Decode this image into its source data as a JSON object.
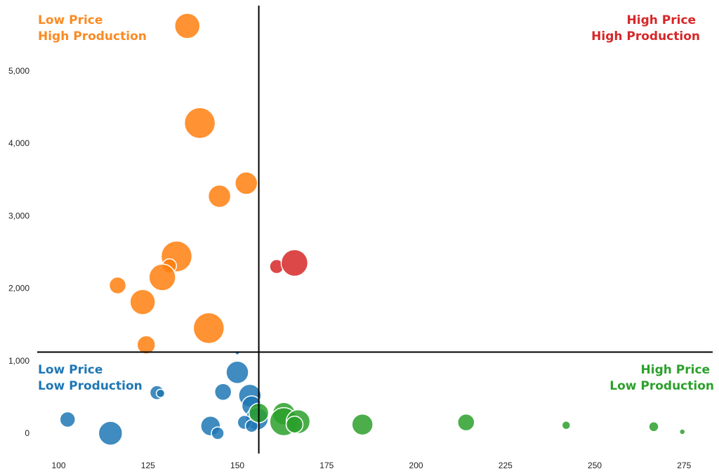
{
  "chart_data": {
    "type": "scatter",
    "subtype": "bubble",
    "title": "",
    "xlabel": "",
    "ylabel": "",
    "xlim": [
      94,
      283
    ],
    "ylim": [
      -280,
      5900
    ],
    "x_ticks": [
      100,
      125,
      150,
      175,
      200,
      225,
      250,
      275
    ],
    "y_ticks": [
      0,
      1000,
      2000,
      3000,
      4000,
      5000
    ],
    "y_tick_labels": [
      "0",
      "1,000",
      "2,000",
      "3,000",
      "4,000",
      "5,000"
    ],
    "x_divider": 156,
    "y_divider": 1120,
    "grid": false,
    "legend": "none",
    "quadrants": [
      {
        "key": "lp_hp",
        "lines": [
          "Low Price",
          "High Production"
        ],
        "color": "#fb8b24",
        "position": "top-left"
      },
      {
        "key": "hp_hp",
        "lines": [
          "High Price",
          "High Production"
        ],
        "color": "#d62728",
        "position": "top-right"
      },
      {
        "key": "lp_lp",
        "lines": [
          "Low Price",
          "Low Production"
        ],
        "color": "#1f77b4",
        "position": "bottom-left"
      },
      {
        "key": "hp_lp",
        "lines": [
          "High Price",
          "Low Production"
        ],
        "color": "#2ca02c",
        "position": "bottom-right"
      }
    ],
    "series": [
      {
        "quadrant": "lp_hp",
        "color": "#ff7f0e",
        "points": [
          {
            "x": 136,
            "y": 5620,
            "size": 18
          },
          {
            "x": 139.5,
            "y": 4280,
            "size": 22
          },
          {
            "x": 145,
            "y": 3270,
            "size": 16
          },
          {
            "x": 152.5,
            "y": 3450,
            "size": 16
          },
          {
            "x": 133,
            "y": 2440,
            "size": 22
          },
          {
            "x": 131,
            "y": 2310,
            "size": 10
          },
          {
            "x": 129,
            "y": 2150,
            "size": 19
          },
          {
            "x": 116.5,
            "y": 2040,
            "size": 12
          },
          {
            "x": 123.5,
            "y": 1810,
            "size": 18
          },
          {
            "x": 142,
            "y": 1450,
            "size": 22
          },
          {
            "x": 124.5,
            "y": 1220,
            "size": 13
          }
        ]
      },
      {
        "quadrant": "hp_hp",
        "color": "#d62728",
        "points": [
          {
            "x": 161,
            "y": 2300,
            "size": 10
          },
          {
            "x": 166,
            "y": 2350,
            "size": 19
          }
        ]
      },
      {
        "quadrant": "lp_lp",
        "color": "#1f77b4",
        "points": [
          {
            "x": 150,
            "y": 1110,
            "size": 3
          },
          {
            "x": 150,
            "y": 840,
            "size": 16
          },
          {
            "x": 127.5,
            "y": 560,
            "size": 10
          },
          {
            "x": 128.5,
            "y": 550,
            "size": 6
          },
          {
            "x": 146,
            "y": 570,
            "size": 12
          },
          {
            "x": 153.5,
            "y": 520,
            "size": 16
          },
          {
            "x": 154,
            "y": 380,
            "size": 14
          },
          {
            "x": 155.5,
            "y": 200,
            "size": 16
          },
          {
            "x": 152,
            "y": 150,
            "size": 10
          },
          {
            "x": 102.5,
            "y": 190,
            "size": 11
          },
          {
            "x": 114.5,
            "y": 0,
            "size": 17
          },
          {
            "x": 142.5,
            "y": 100,
            "size": 14
          },
          {
            "x": 144.5,
            "y": 0,
            "size": 9
          },
          {
            "x": 154,
            "y": 100,
            "size": 9
          }
        ]
      },
      {
        "quadrant": "hp_lp",
        "color": "#2ca02c",
        "points": [
          {
            "x": 156,
            "y": 280,
            "size": 14
          },
          {
            "x": 163,
            "y": 270,
            "size": 16
          },
          {
            "x": 163,
            "y": 160,
            "size": 20
          },
          {
            "x": 167,
            "y": 160,
            "size": 17
          },
          {
            "x": 166,
            "y": 120,
            "size": 12
          },
          {
            "x": 185,
            "y": 120,
            "size": 15
          },
          {
            "x": 214,
            "y": 150,
            "size": 12
          },
          {
            "x": 242,
            "y": 110,
            "size": 6
          },
          {
            "x": 266.5,
            "y": 90,
            "size": 7
          },
          {
            "x": 274.5,
            "y": 20,
            "size": 4
          }
        ]
      }
    ]
  }
}
